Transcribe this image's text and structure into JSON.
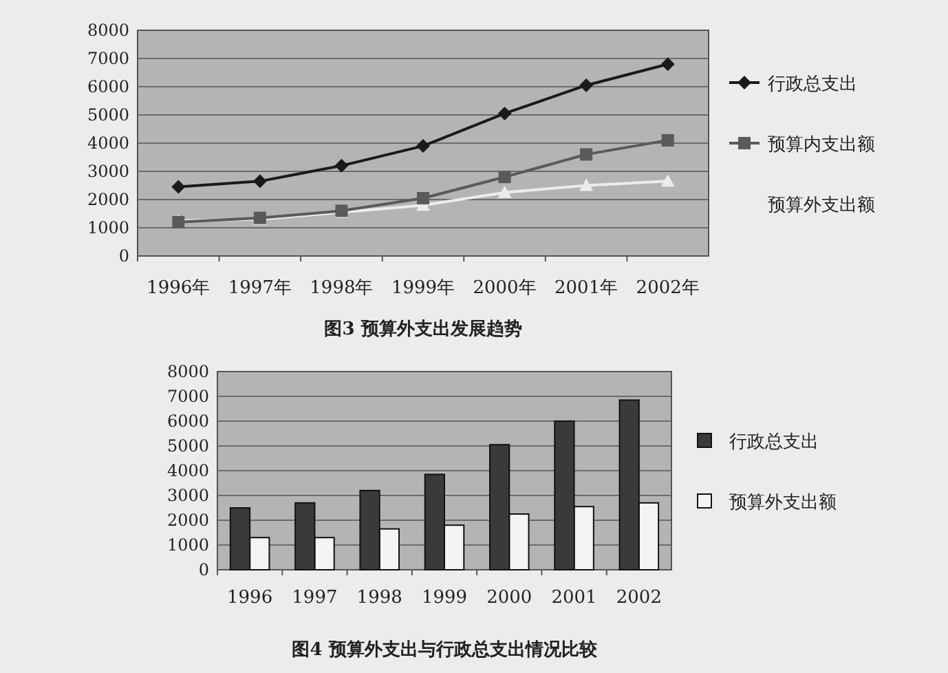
{
  "chart_data": [
    {
      "type": "line",
      "title": "图3  预算外支出发展趋势",
      "categories": [
        "1996年",
        "1997年",
        "1998年",
        "1999年",
        "2000年",
        "2001年",
        "2002年"
      ],
      "series": [
        {
          "name": "行政总支出",
          "color": "#1a1a1a",
          "marker": "diamond",
          "values": [
            2450,
            2650,
            3200,
            3900,
            5050,
            6050,
            6800
          ]
        },
        {
          "name": "预算内支出额",
          "color": "#5a5a5a",
          "marker": "square",
          "values": [
            1200,
            1350,
            1600,
            2050,
            2800,
            3600,
            4100
          ]
        },
        {
          "name": "预算外支出额",
          "color": "#ececec",
          "marker": "triangle",
          "values": [
            1250,
            1300,
            1550,
            1800,
            2250,
            2500,
            2650
          ]
        }
      ],
      "ylim": [
        0,
        8000
      ],
      "yticks": [
        0,
        1000,
        2000,
        3000,
        4000,
        5000,
        6000,
        7000,
        8000
      ],
      "grid": "y",
      "legend": "right"
    },
    {
      "type": "bar",
      "title": "图4  预算外支出与行政总支出情况比较",
      "categories": [
        "1996",
        "1997",
        "1998",
        "1999",
        "2000",
        "2001",
        "2002"
      ],
      "series": [
        {
          "name": "行政总支出",
          "color": "#3a3a3a",
          "values": [
            2500,
            2700,
            3200,
            3850,
            5050,
            6000,
            6850
          ]
        },
        {
          "name": "预算外支出额",
          "color": "#f4f4f4",
          "values": [
            1300,
            1300,
            1650,
            1800,
            2250,
            2550,
            2700
          ]
        }
      ],
      "ylim": [
        0,
        8000
      ],
      "yticks": [
        0,
        1000,
        2000,
        3000,
        4000,
        5000,
        6000,
        7000,
        8000
      ],
      "grid": "y",
      "legend": "right"
    }
  ]
}
